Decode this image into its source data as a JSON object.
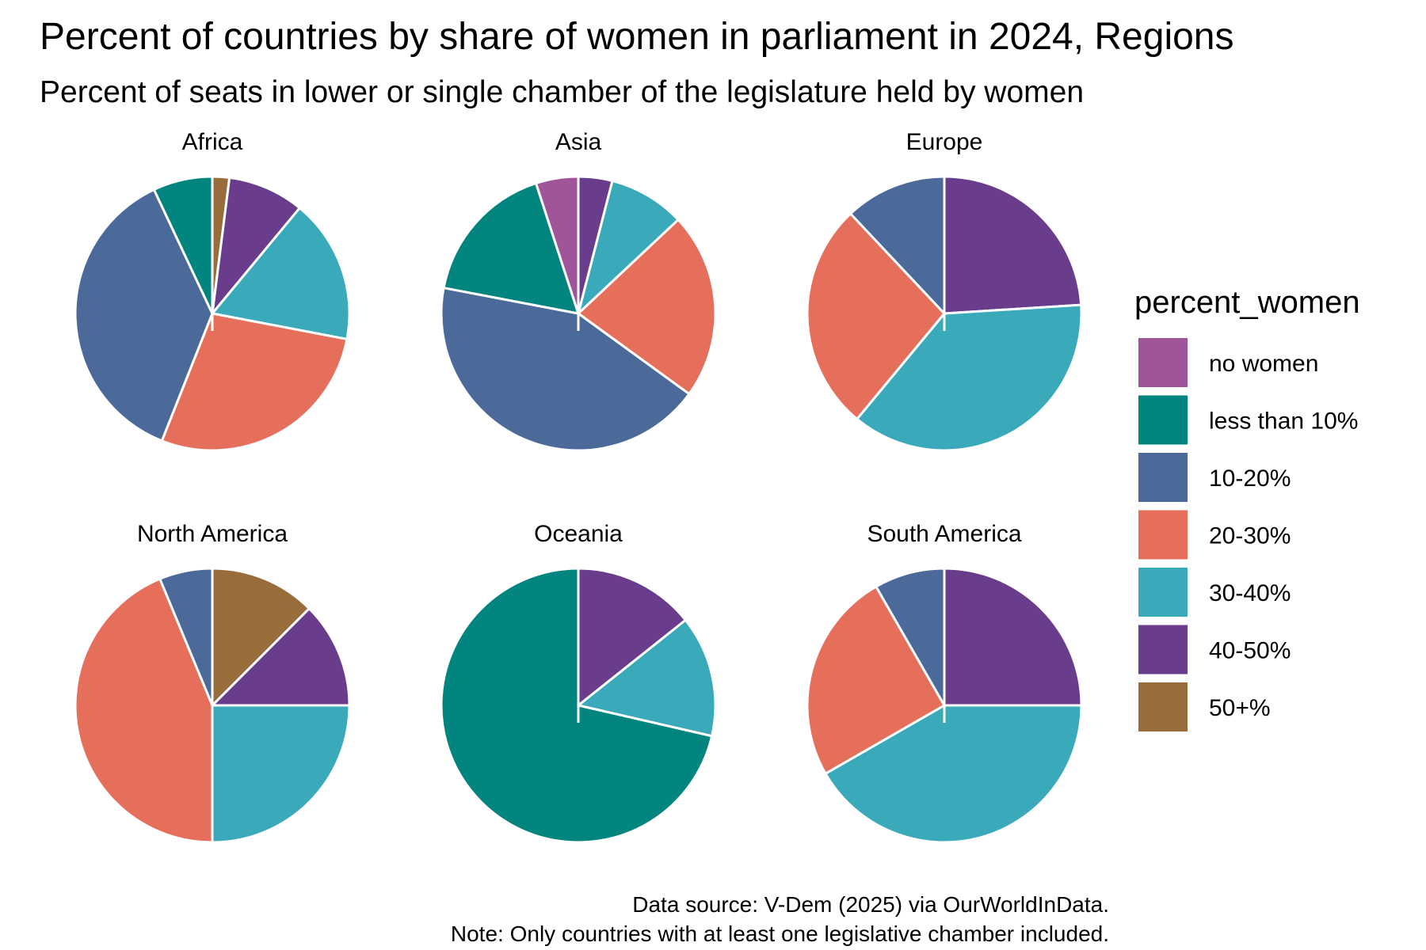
{
  "chart_data": {
    "type": "pie",
    "title": "Percent of countries by share of women in parliament in 2024, Regions",
    "subtitle": "Percent of seats in lower or single chamber of the legislature held by women",
    "legend": {
      "title": "percent_women",
      "placement": "right"
    },
    "categories": [
      "no women",
      "less than 10%",
      "10-20%",
      "20-30%",
      "30-40%",
      "40-50%",
      "50+%"
    ],
    "colors": {
      "no women": "#a0559b",
      "less than 10%": "#01857e",
      "10-20%": "#4b6a99",
      "20-30%": "#e66f5b",
      "30-40%": "#3aaabb",
      "40-50%": "#6a3d8c",
      "50+%": "#986d3b"
    },
    "panels": [
      {
        "name": "Africa",
        "slices": [
          {
            "category": "50+%",
            "value": 2
          },
          {
            "category": "40-50%",
            "value": 9
          },
          {
            "category": "30-40%",
            "value": 17
          },
          {
            "category": "20-30%",
            "value": 28
          },
          {
            "category": "10-20%",
            "value": 37
          },
          {
            "category": "less than 10%",
            "value": 7
          }
        ]
      },
      {
        "name": "Asia",
        "slices": [
          {
            "category": "40-50%",
            "value": 4
          },
          {
            "category": "30-40%",
            "value": 9
          },
          {
            "category": "20-30%",
            "value": 22
          },
          {
            "category": "10-20%",
            "value": 43
          },
          {
            "category": "less than 10%",
            "value": 17
          },
          {
            "category": "no women",
            "value": 5
          }
        ]
      },
      {
        "name": "Europe",
        "slices": [
          {
            "category": "40-50%",
            "value": 24
          },
          {
            "category": "30-40%",
            "value": 37
          },
          {
            "category": "20-30%",
            "value": 27
          },
          {
            "category": "10-20%",
            "value": 12
          }
        ]
      },
      {
        "name": "North America",
        "slices": [
          {
            "category": "50+%",
            "value": 12.5
          },
          {
            "category": "40-50%",
            "value": 12.5
          },
          {
            "category": "30-40%",
            "value": 25
          },
          {
            "category": "20-30%",
            "value": 43.75
          },
          {
            "category": "10-20%",
            "value": 6.25
          }
        ]
      },
      {
        "name": "Oceania",
        "slices": [
          {
            "category": "40-50%",
            "value": 14.3
          },
          {
            "category": "30-40%",
            "value": 14.3
          },
          {
            "category": "less than 10%",
            "value": 71.4
          }
        ]
      },
      {
        "name": "South America",
        "slices": [
          {
            "category": "40-50%",
            "value": 25
          },
          {
            "category": "30-40%",
            "value": 41.7
          },
          {
            "category": "20-30%",
            "value": 25
          },
          {
            "category": "10-20%",
            "value": 8.3
          }
        ]
      }
    ],
    "caption": [
      "Data source: V-Dem (2025) via OurWorldInData.",
      "Note: Only countries with at least one legislative chamber included."
    ]
  }
}
